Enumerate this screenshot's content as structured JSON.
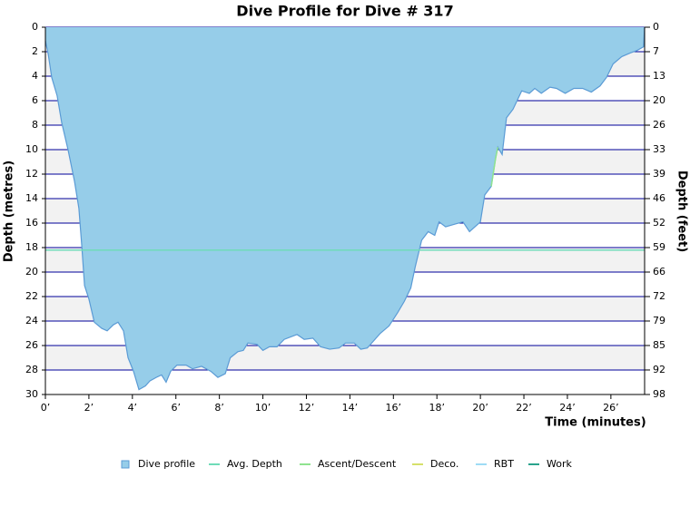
{
  "chart_data": {
    "type": "area",
    "title": "Dive Profile for Dive # 317",
    "ylabel": "Depth (metres)",
    "y2label": "Depth (feet)",
    "xlabel": "Time (minutes)",
    "x": [
      0,
      0.13,
      0.29,
      0.54,
      0.75,
      1.04,
      1.34,
      1.54,
      1.67,
      1.8,
      2.0,
      2.25,
      2.59,
      2.84,
      3.13,
      3.34,
      3.59,
      3.8,
      4.05,
      4.3,
      4.6,
      4.8,
      5.1,
      5.34,
      5.55,
      5.76,
      6.05,
      6.47,
      6.76,
      7.18,
      7.6,
      7.93,
      8.27,
      8.5,
      8.85,
      9.1,
      9.31,
      9.73,
      10.0,
      10.3,
      10.65,
      10.98,
      11.27,
      11.57,
      11.9,
      12.3,
      12.65,
      13.07,
      13.5,
      13.8,
      14.2,
      14.5,
      14.8,
      15.1,
      15.4,
      15.8,
      16.2,
      16.5,
      16.8,
      17.0,
      17.3,
      17.6,
      17.9,
      18.1,
      18.4,
      18.8,
      19.2,
      19.5,
      20.0,
      20.2,
      20.5,
      20.7,
      20.8,
      21.0,
      21.2,
      21.5,
      21.9,
      22.25,
      22.5,
      22.8,
      23.2,
      23.5,
      23.9,
      24.3,
      24.7,
      25.1,
      25.5,
      25.8,
      26.1,
      26.5,
      26.9,
      27.2,
      27.5,
      27.55
    ],
    "series": [
      {
        "name": "Dive profile",
        "color": "#96cde9",
        "values": [
          1.1,
          2.2,
          4.1,
          5.6,
          7.8,
          10,
          12.6,
          14.8,
          17.8,
          21.1,
          22.2,
          24.1,
          24.6,
          24.8,
          24.3,
          24.1,
          24.8,
          27,
          28.1,
          29.6,
          29.3,
          28.9,
          28.6,
          28.4,
          29,
          28.1,
          27.6,
          27.6,
          27.9,
          27.7,
          28.1,
          28.6,
          28.3,
          27,
          26.5,
          26.4,
          25.8,
          25.9,
          26.4,
          26.1,
          26.1,
          25.5,
          25.3,
          25.1,
          25.5,
          25.4,
          26.1,
          26.3,
          26.2,
          25.8,
          25.8,
          26.3,
          26.2,
          25.6,
          25,
          24.4,
          23.3,
          22.4,
          21.3,
          19.6,
          17.4,
          16.7,
          17,
          15.9,
          16.3,
          16.1,
          15.9,
          16.7,
          15.9,
          13.7,
          13,
          10.7,
          9.8,
          10.4,
          7.4,
          6.7,
          5.2,
          5.4,
          5,
          5.4,
          4.9,
          5,
          5.4,
          5,
          5,
          5.3,
          4.8,
          4.1,
          3,
          2.4,
          2.1,
          1.9,
          1.6,
          0
        ]
      },
      {
        "name": "Avg. Depth",
        "color": "#6fdcb8",
        "level": 18.2
      },
      {
        "name": "Ascent/Descent",
        "color": "#8fe38f",
        "x": [
          20.5,
          20.7,
          20.8
        ],
        "values": [
          13,
          10.7,
          9.8
        ]
      },
      {
        "name": "Deco.",
        "color": "#d6e06a"
      },
      {
        "name": "RBT",
        "color": "#9fdcf5"
      },
      {
        "name": "Work",
        "color": "#2aa38c"
      }
    ],
    "xlim": [
      0,
      27.55
    ],
    "xticks": [
      {
        "value": 0,
        "label": "0’"
      },
      {
        "value": 2,
        "label": "2’"
      },
      {
        "value": 4,
        "label": "4’"
      },
      {
        "value": 6,
        "label": "6’"
      },
      {
        "value": 8,
        "label": "8’"
      },
      {
        "value": 10,
        "label": "10’"
      },
      {
        "value": 12,
        "label": "12’"
      },
      {
        "value": 14,
        "label": "14’"
      },
      {
        "value": 16,
        "label": "16’"
      },
      {
        "value": 18,
        "label": "18’"
      },
      {
        "value": 20,
        "label": "20’"
      },
      {
        "value": 22,
        "label": "22’"
      },
      {
        "value": 24,
        "label": "24’"
      },
      {
        "value": 26,
        "label": "26’"
      }
    ],
    "ylim": [
      30,
      0
    ],
    "yticks": [
      0,
      2,
      4,
      6,
      8,
      10,
      12,
      14,
      16,
      18,
      20,
      22,
      24,
      26,
      28,
      30
    ],
    "y2lim": [
      98.43,
      0
    ],
    "y2ticks": [
      0,
      {
        "value": 6.56,
        "label": "7"
      },
      {
        "value": 13.12,
        "label": "13"
      },
      {
        "value": 19.69,
        "label": "20"
      },
      {
        "value": 26.25,
        "label": "26"
      },
      {
        "value": 32.81,
        "label": "33"
      },
      {
        "value": 39.37,
        "label": "39"
      },
      {
        "value": 45.93,
        "label": "46"
      },
      {
        "value": 52.49,
        "label": "52"
      },
      {
        "value": 59.06,
        "label": "59"
      },
      {
        "value": 65.62,
        "label": "66"
      },
      {
        "value": 72.18,
        "label": "72"
      },
      {
        "value": 78.74,
        "label": "79"
      },
      {
        "value": 85.3,
        "label": "85"
      },
      {
        "value": 91.86,
        "label": "92"
      },
      {
        "value": 98.43,
        "label": "98"
      }
    ],
    "grid": true,
    "grid_color": "#000099",
    "band_color": "#f2f2f2",
    "line_color": "#5b9bd5"
  }
}
